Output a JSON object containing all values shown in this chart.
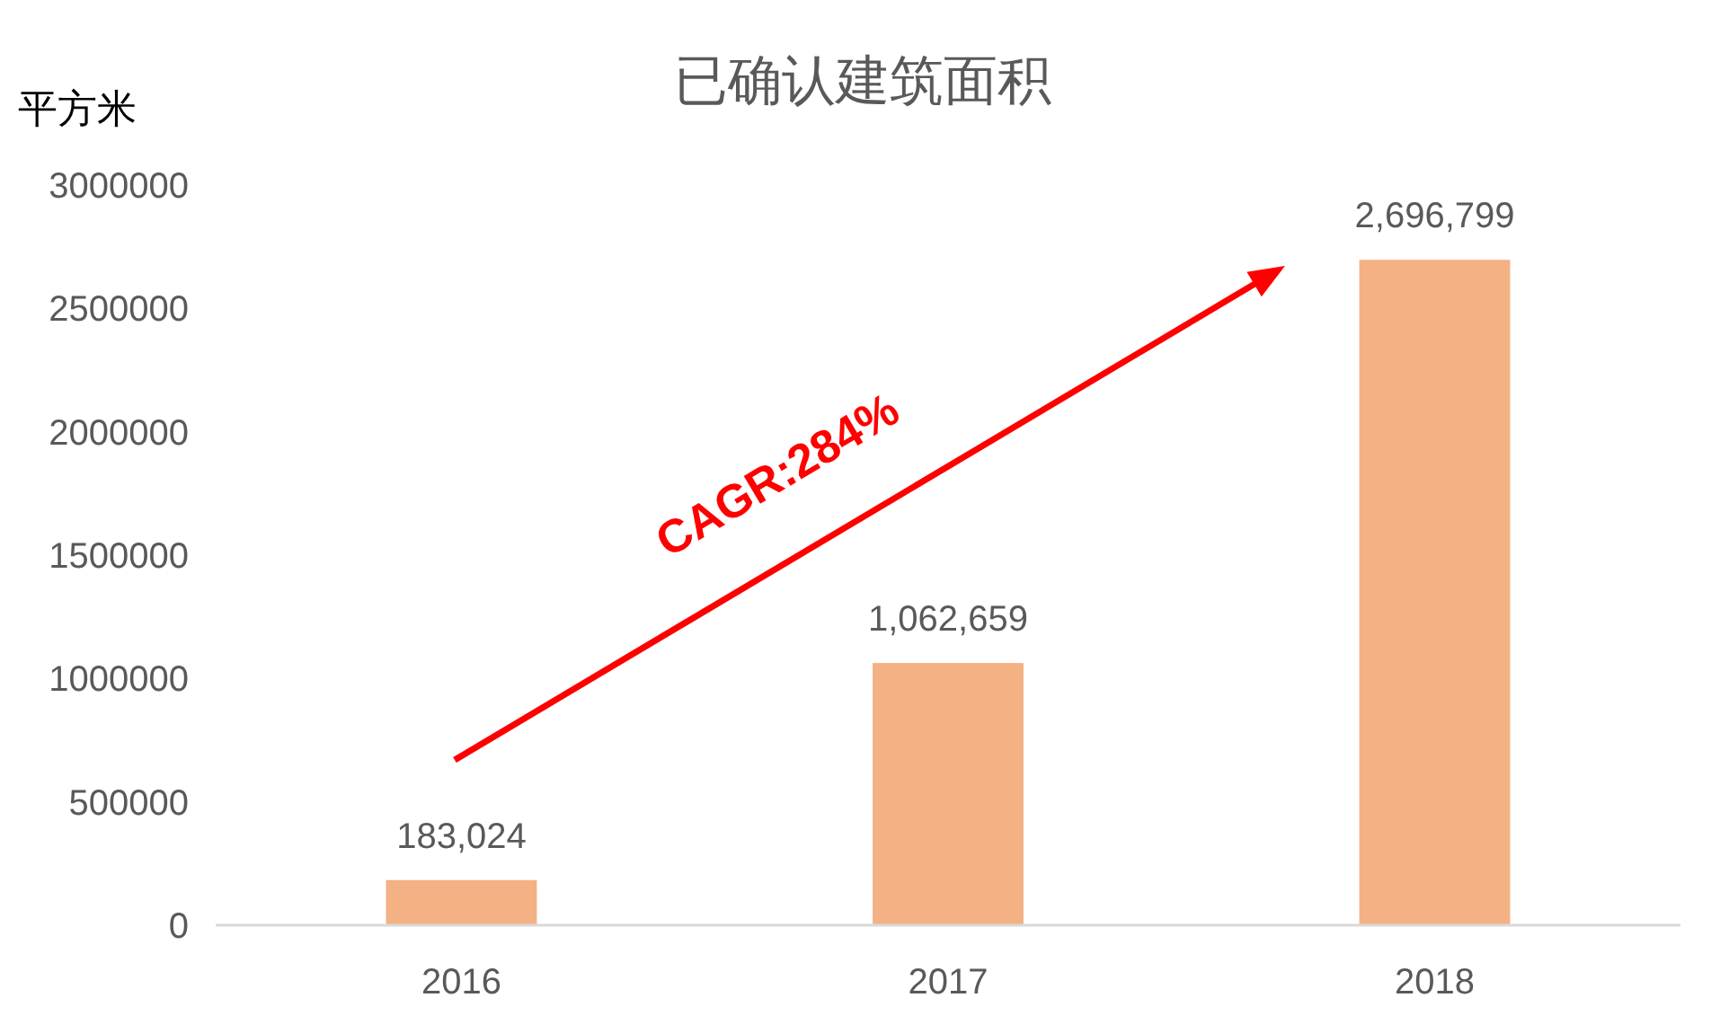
{
  "chart_data": {
    "type": "bar",
    "title": "已确认建筑面积",
    "ylabel": "平方米",
    "categories": [
      "2016",
      "2017",
      "2018"
    ],
    "values": [
      183024,
      1062659,
      2696799
    ],
    "value_labels": [
      "183,024",
      "1,062,659",
      "2,696,799"
    ],
    "color": "#f4b183",
    "ylim": [
      0,
      3000000
    ],
    "yticks": [
      0,
      500000,
      1000000,
      1500000,
      2000000,
      2500000,
      3000000
    ],
    "grid": false,
    "annotations": [
      "CAGR:284%"
    ]
  }
}
